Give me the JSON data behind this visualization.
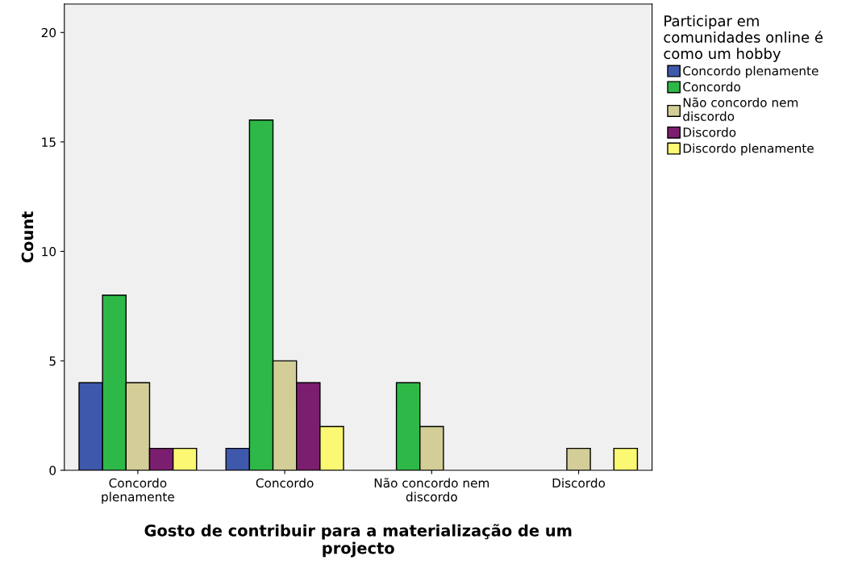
{
  "chart_data": {
    "type": "bar",
    "categories": [
      "Concordo\nplenamente",
      "Concordo",
      "Não concordo nem\ndiscordo",
      "Discordo"
    ],
    "series": [
      {
        "name": "Concordo plenamente",
        "color": "#3e58ac",
        "values": [
          4,
          1,
          null,
          null
        ]
      },
      {
        "name": "Concordo",
        "color": "#2eb848",
        "values": [
          8,
          16,
          4,
          null
        ]
      },
      {
        "name": "Não concordo nem\ndiscordo",
        "color": "#d3ce97",
        "values": [
          4,
          5,
          2,
          1
        ]
      },
      {
        "name": "Discordo",
        "color": "#7c1e6f",
        "values": [
          1,
          4,
          null,
          null
        ]
      },
      {
        "name": "Discordo plenamente",
        "color": "#fbf873",
        "values": [
          1,
          2,
          null,
          1
        ]
      }
    ],
    "xlabel": "Gosto de contribuir para a materialização de um\nprojecto",
    "ylabel": "Count",
    "legend_title": "Participar em\ncomunidades online é\ncomo um hobby",
    "ylim": [
      0,
      21.3
    ],
    "yticks": [
      0,
      5,
      10,
      15,
      20
    ],
    "grid": false,
    "legend": "top right"
  }
}
